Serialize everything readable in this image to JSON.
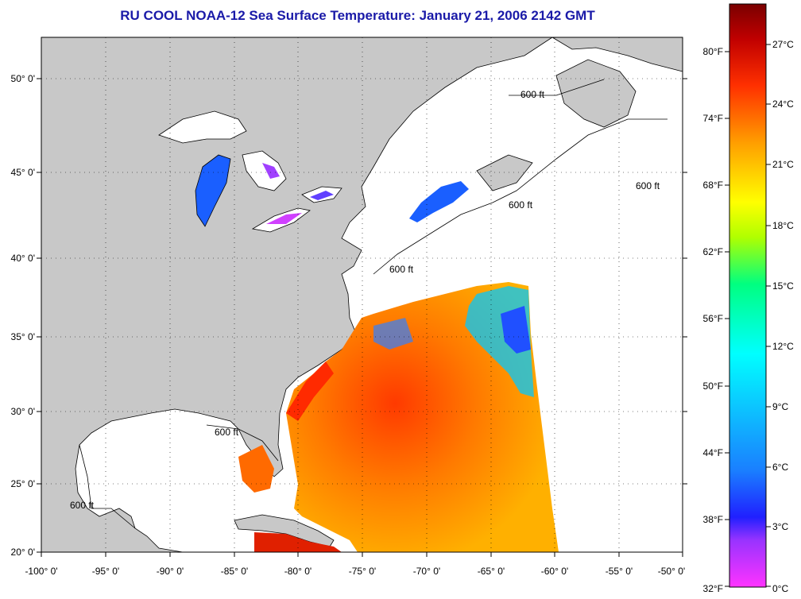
{
  "title": "RU COOL  NOAA-12  Sea Surface Temperature:  January 21, 2006 2142 GMT",
  "map": {
    "lon_range": [
      -100,
      -50
    ],
    "lat_range": [
      20,
      52.5
    ],
    "lon_ticks": [
      "-100° 0'",
      "-95° 0'",
      "-90° 0'",
      "-85° 0'",
      "-80° 0'",
      "-75° 0'",
      "-70° 0'",
      "-65° 0'",
      "-60° 0'",
      "-55° 0'",
      "-50° 0'"
    ],
    "lat_ticks": [
      "20° 0'",
      "25° 0'",
      "30° 0'",
      "35° 0'",
      "40° 0'",
      "45° 0'",
      "50° 0'"
    ],
    "contour_label": "600 ft",
    "land_color": "#c8c8c8",
    "ocean_no_data_color": "#ffffff"
  },
  "colorbar": {
    "fahrenheit_labels": [
      "80°F",
      "74°F",
      "68°F",
      "62°F",
      "56°F",
      "50°F",
      "44°F",
      "38°F",
      "32°F"
    ],
    "celsius_labels": [
      "27°C",
      "24°C",
      "21°C",
      "18°C",
      "15°C",
      "12°C",
      "9°C",
      "6°C",
      "3°C",
      "0°C"
    ],
    "colors": [
      "#ff33ff",
      "#9933ff",
      "#2020ff",
      "#1a7fff",
      "#00ffff",
      "#00ff80",
      "#b0ff00",
      "#ffff00",
      "#ffa000",
      "#ff3000",
      "#c00000",
      "#7a0000"
    ]
  }
}
